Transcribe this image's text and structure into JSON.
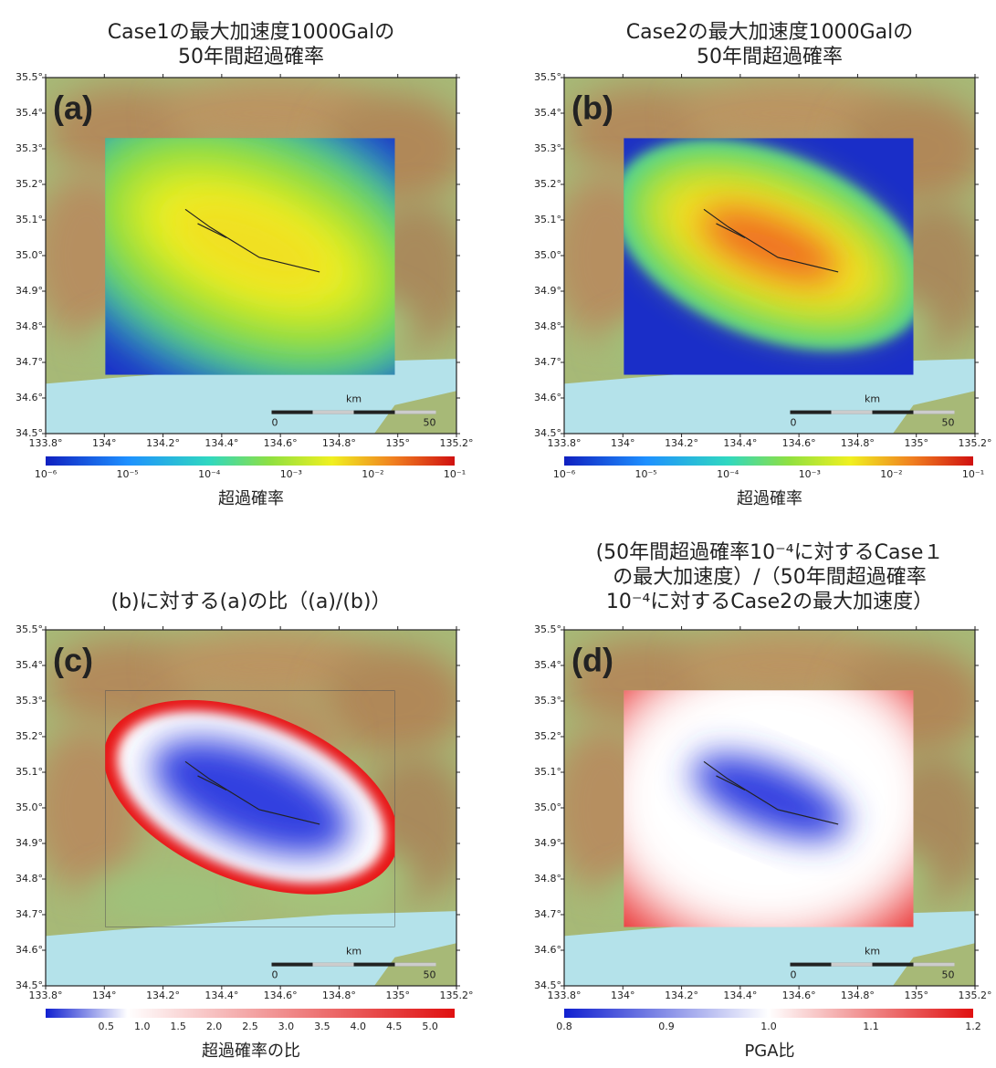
{
  "panels": [
    {
      "label": "(a)",
      "title": [
        "Case1の最大加速度1000Galの",
        "50年間超過確率"
      ],
      "lat_ticks": [
        "35.5°",
        "35.4°",
        "35.3°",
        "35.2°",
        "35.1°",
        "35.0°",
        "34.9°",
        "34.8°",
        "34.7°",
        "34.6°",
        "34.5°"
      ],
      "lon_ticks": [
        "133.8°",
        "134°",
        "134.2°",
        "134.4°",
        "134.6°",
        "134.8°",
        "135°",
        "135.2°"
      ],
      "scale": {
        "unit": "km",
        "start": "0",
        "end": "50"
      },
      "colorbar": {
        "ticks": [
          "10⁻⁶",
          "10⁻⁵",
          "10⁻⁴",
          "10⁻³",
          "10⁻²",
          "10⁻¹"
        ],
        "label": "超過確率"
      }
    },
    {
      "label": "(b)",
      "title": [
        "Case2の最大加速度1000Galの",
        "50年間超過確率"
      ],
      "lat_ticks": [
        "35.5°",
        "35.4°",
        "35.3°",
        "35.2°",
        "35.1°",
        "35.0°",
        "34.9°",
        "34.8°",
        "34.7°",
        "34.6°",
        "34.5°"
      ],
      "lon_ticks": [
        "133.8°",
        "134°",
        "134.2°",
        "134.4°",
        "134.6°",
        "134.8°",
        "135°",
        "135.2°"
      ],
      "scale": {
        "unit": "km",
        "start": "0",
        "end": "50"
      },
      "colorbar": {
        "ticks": [
          "10⁻⁶",
          "10⁻⁵",
          "10⁻⁴",
          "10⁻³",
          "10⁻²",
          "10⁻¹"
        ],
        "label": "超過確率"
      }
    },
    {
      "label": "(c)",
      "title": [
        "(b)に対する(a)の比（(a)/(b)）"
      ],
      "lat_ticks": [
        "35.5°",
        "35.4°",
        "35.3°",
        "35.2°",
        "35.1°",
        "35.0°",
        "34.9°",
        "34.8°",
        "34.7°",
        "34.6°",
        "34.5°"
      ],
      "lon_ticks": [
        "133.8°",
        "134°",
        "134.2°",
        "134.4°",
        "134.6°",
        "134.8°",
        "135°",
        "135.2°"
      ],
      "scale": {
        "unit": "km",
        "start": "0",
        "end": "50"
      },
      "colorbar": {
        "ticks": [
          "0.5",
          "1.0",
          "1.5",
          "2.0",
          "2.5",
          "3.0",
          "3.5",
          "4.0",
          "4.5",
          "5.0"
        ],
        "label": "超過確率の比"
      }
    },
    {
      "label": "(d)",
      "title": [
        "(50年間超過確率10⁻⁴に対するCase１",
        "の最大加速度）/（50年間超過確率",
        "10⁻⁴に対するCase2の最大加速度）"
      ],
      "lat_ticks": [
        "35.5°",
        "35.4°",
        "35.3°",
        "35.2°",
        "35.1°",
        "35.0°",
        "34.9°",
        "34.8°",
        "34.7°",
        "34.6°",
        "34.5°"
      ],
      "lon_ticks": [
        "133.8°",
        "134°",
        "134.2°",
        "134.4°",
        "134.6°",
        "134.8°",
        "135°",
        "135.2°"
      ],
      "scale": {
        "unit": "km",
        "start": "0",
        "end": "50"
      },
      "colorbar": {
        "ticks": [
          "0.8",
          "0.9",
          "1.0",
          "1.1",
          "1.2"
        ],
        "label": "PGA比"
      }
    }
  ]
}
